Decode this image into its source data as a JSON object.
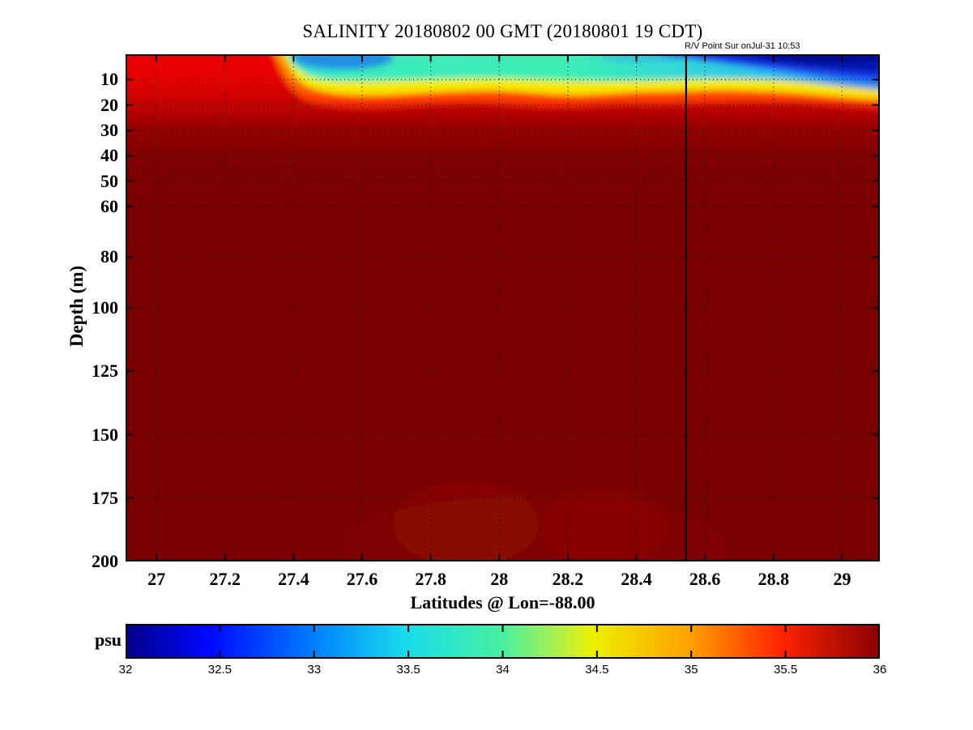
{
  "chart_data": {
    "type": "heatmap",
    "title": "SALINITY 20180802 00 GMT (20180801 19 CDT)",
    "xlabel": "Latitudes @ Lon=-88.00",
    "ylabel": "Depth (m)",
    "xlim": [
      26.91,
      29.11
    ],
    "ylim": [
      0,
      200
    ],
    "y_axis_direction": "down",
    "grid": "dotted",
    "x_ticks": {
      "values": [
        27,
        27.2,
        27.4,
        27.6,
        27.8,
        28,
        28.2,
        28.4,
        28.6,
        28.8,
        29
      ],
      "labels": [
        "27",
        "27.2",
        "27.4",
        "27.6",
        "27.8",
        "28",
        "28.2",
        "28.4",
        "28.6",
        "28.8",
        "29"
      ]
    },
    "y_ticks": {
      "values": [
        10,
        20,
        30,
        40,
        50,
        60,
        80,
        100,
        125,
        150,
        175,
        200
      ],
      "labels": [
        "10",
        "20",
        "30",
        "40",
        "50",
        "60",
        "80",
        "100",
        "125",
        "150",
        "175",
        "200"
      ]
    },
    "annotation": {
      "text": "R/V Point Sur onJul-31 10:53",
      "lat": 28.545,
      "style": "vertical-line"
    },
    "colorbar": {
      "label": "psu",
      "range": [
        32,
        36
      ],
      "colormap": "jet",
      "ticks": {
        "values": [
          32,
          32.5,
          33,
          33.5,
          34,
          34.5,
          35,
          35.5,
          36
        ],
        "labels": [
          "32",
          "32.5",
          "33",
          "33.5",
          "34",
          "34.5",
          "35",
          "35.5",
          "36"
        ]
      }
    },
    "salinity_grid": {
      "units": "psu",
      "lats": [
        26.95,
        27.1,
        27.3,
        27.45,
        27.6,
        27.8,
        28.0,
        28.2,
        28.4,
        28.55,
        28.7,
        28.85,
        29.0,
        29.1
      ],
      "depths": [
        0,
        5,
        10,
        15,
        20,
        30,
        50,
        100,
        200
      ],
      "values": [
        [
          35.6,
          35.6,
          35.7,
          35.8,
          35.9,
          36.0,
          36.0,
          36.0,
          35.9
        ],
        [
          35.5,
          35.6,
          35.7,
          35.8,
          35.9,
          36.0,
          36.0,
          36.0,
          35.9
        ],
        [
          35.5,
          35.5,
          35.6,
          35.8,
          35.9,
          36.0,
          36.0,
          36.0,
          35.9
        ],
        [
          33.9,
          34.0,
          34.3,
          34.7,
          35.4,
          35.9,
          36.0,
          36.0,
          35.9
        ],
        [
          33.3,
          33.6,
          33.9,
          34.5,
          35.4,
          35.9,
          36.0,
          36.0,
          35.9
        ],
        [
          33.7,
          33.8,
          34.0,
          34.5,
          35.3,
          35.9,
          36.0,
          36.0,
          35.9
        ],
        [
          33.8,
          33.8,
          34.1,
          34.4,
          35.2,
          35.9,
          36.0,
          36.0,
          35.8
        ],
        [
          33.7,
          33.8,
          34.0,
          34.4,
          35.2,
          35.9,
          36.0,
          36.0,
          35.8
        ],
        [
          33.6,
          33.7,
          34.0,
          34.5,
          35.3,
          35.9,
          36.0,
          36.0,
          35.8
        ],
        [
          32.9,
          33.3,
          33.9,
          34.5,
          35.3,
          35.9,
          36.0,
          36.0,
          35.9
        ],
        [
          32.4,
          33.0,
          33.7,
          34.4,
          35.2,
          35.9,
          36.0,
          36.0,
          35.9
        ],
        [
          32.2,
          32.8,
          33.5,
          34.3,
          35.1,
          35.8,
          36.0,
          36.0,
          35.9
        ],
        [
          32.1,
          32.5,
          33.2,
          34.2,
          35.0,
          35.8,
          36.0,
          36.0,
          35.9
        ],
        [
          32.3,
          32.8,
          33.4,
          34.1,
          34.9,
          35.8,
          36.0,
          36.0,
          35.9
        ]
      ]
    }
  },
  "colors": {
    "background": "#ffffff",
    "axis": "#000000",
    "deep_water": "#7a0000",
    "jet_anchors": [
      "#000089",
      "#0008ff",
      "#0080ff",
      "#18dcec",
      "#48f0a0",
      "#ecf000",
      "#ffa000",
      "#ff2400",
      "#8c0000"
    ]
  }
}
